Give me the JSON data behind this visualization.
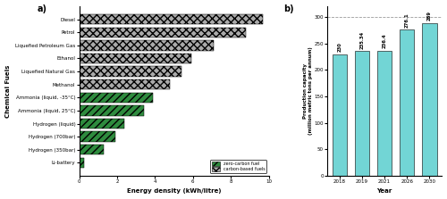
{
  "bar_chart": {
    "fuels": [
      "Li-battery",
      "Hydrogen (350bar)",
      "Hydrogen (700bar)",
      "Hydrogen (liquid)",
      "Ammonia (liquid, 25°C)",
      "Ammonia (liquid, -35°C)",
      "Methanol",
      "Liquefied Natural Gas",
      "Ethanol",
      "Liquefied Petroleum Gas",
      "Petrol",
      "Diesel"
    ],
    "values": [
      0.25,
      1.3,
      1.9,
      2.4,
      3.4,
      3.9,
      4.8,
      5.4,
      5.9,
      7.1,
      8.78,
      9.7
    ],
    "carbon_color": "#aaaaaa",
    "zero_color": "#2e8b3e",
    "ylabel": "Chemical Fuels",
    "xlabel": "Energy density (kWh/litre)",
    "xlim": [
      0,
      10
    ],
    "xticks": [
      0,
      2,
      4,
      6,
      8,
      10
    ],
    "legend_labels": [
      "zero-carbon fuel",
      "carbon-based fuels"
    ]
  },
  "bar_chart2": {
    "years": [
      "2018",
      "2019",
      "2021",
      "2026",
      "2030"
    ],
    "values": [
      230,
      235.34,
      236.4,
      276.1,
      289
    ],
    "labels": [
      "230",
      "235.34",
      "236.4",
      "276.1",
      "289"
    ],
    "bar_color": "#72d5d5",
    "ylabel": "Production capacity\n(million metric tons per annum)",
    "xlabel": "Year",
    "ylim": [
      0,
      320
    ],
    "yticks": [
      0,
      50,
      100,
      150,
      200,
      250,
      300
    ],
    "hline_y": 300
  },
  "title_a": "a)",
  "title_b": "b)"
}
